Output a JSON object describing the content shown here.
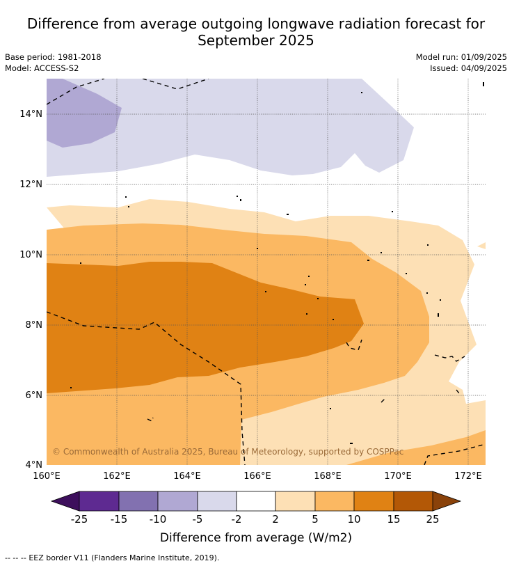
{
  "title": {
    "line1": "Difference from average outgoing longwave radiation forecast for",
    "line2": "September 2025"
  },
  "meta": {
    "base_period": "Base period: 1981-2018",
    "model": "Model: ACCESS-S2",
    "model_run": "Model run: 01/09/2025",
    "issued": "Issued: 04/09/2025"
  },
  "map": {
    "lat_labels": [
      "14°N",
      "12°N",
      "10°N",
      "8°N",
      "6°N",
      "4°N"
    ],
    "lon_labels": [
      "160°E",
      "162°E",
      "164°E",
      "166°E",
      "168°E",
      "170°E",
      "172°E"
    ],
    "copyright": "© Commonwealth of Australia 2025, Bureau of Meteorology, supported by COSPPac"
  },
  "colorbar": {
    "ticks": [
      "-25",
      "-15",
      "-10",
      "-5",
      "-2",
      "2",
      "5",
      "10",
      "15",
      "25"
    ],
    "colors": [
      "#5e2a91",
      "#8271b0",
      "#b0a8d3",
      "#d9d9eb",
      "#ffffff",
      "#fde0b5",
      "#fbb862",
      "#e08214",
      "#b35806"
    ],
    "low_arrow_color": "#3d0f5c",
    "high_arrow_color": "#8a420a",
    "label": "Difference from average (W/m2)"
  },
  "footer": {
    "eez_symbol": "-- -- --",
    "eez_text": "EEZ border V11 (Flanders Marine Institute, 2019)."
  }
}
